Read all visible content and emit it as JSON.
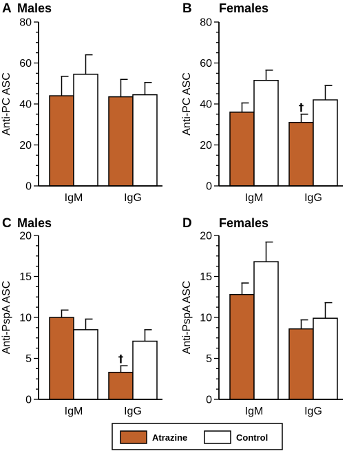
{
  "legend": {
    "items": [
      {
        "label": "Atrazine",
        "color": "#c0622b"
      },
      {
        "label": "Control",
        "color": "#ffffff"
      }
    ]
  },
  "chart_data": [
    {
      "panel": "A",
      "title": "Males",
      "type": "bar",
      "ylabel": "Anti-PC ASC",
      "ylim": [
        0,
        80
      ],
      "yticks": [
        "0",
        "20",
        "40",
        "60",
        "80"
      ],
      "categories": [
        "IgM",
        "IgG"
      ],
      "series": [
        {
          "name": "Atrazine",
          "values": [
            44,
            43.5
          ],
          "errors": [
            9.5,
            8.5
          ]
        },
        {
          "name": "Control",
          "values": [
            54.5,
            44.5
          ],
          "errors": [
            9.5,
            6
          ]
        }
      ],
      "annotations": []
    },
    {
      "panel": "B",
      "title": "Females",
      "type": "bar",
      "ylabel": "Anti-PC ASC",
      "ylim": [
        0,
        80
      ],
      "yticks": [
        "0",
        "20",
        "40",
        "60",
        "80"
      ],
      "categories": [
        "IgM",
        "IgG"
      ],
      "series": [
        {
          "name": "Atrazine",
          "values": [
            36,
            31
          ],
          "errors": [
            4.5,
            4
          ]
        },
        {
          "name": "Control",
          "values": [
            51.5,
            42
          ],
          "errors": [
            5,
            7
          ]
        }
      ],
      "annotations": [
        {
          "text": "†",
          "category": "IgG",
          "series": "Atrazine"
        }
      ]
    },
    {
      "panel": "C",
      "title": "Males",
      "type": "bar",
      "ylabel": "Anti-PspA ASC",
      "ylim": [
        0,
        20
      ],
      "yticks": [
        "0",
        "5",
        "10",
        "15",
        "20"
      ],
      "categories": [
        "IgM",
        "IgG"
      ],
      "series": [
        {
          "name": "Atrazine",
          "values": [
            10,
            3.3
          ],
          "errors": [
            0.9,
            0.8
          ]
        },
        {
          "name": "Control",
          "values": [
            8.5,
            7.1
          ],
          "errors": [
            1.3,
            1.4
          ]
        }
      ],
      "annotations": [
        {
          "text": "†",
          "category": "IgG",
          "series": "Atrazine"
        }
      ]
    },
    {
      "panel": "D",
      "title": "Females",
      "type": "bar",
      "ylabel": "Anti-PspA ASC",
      "ylim": [
        0,
        20
      ],
      "yticks": [
        "0",
        "5",
        "10",
        "15",
        "20"
      ],
      "categories": [
        "IgM",
        "IgG"
      ],
      "series": [
        {
          "name": "Atrazine",
          "values": [
            12.8,
            8.6
          ],
          "errors": [
            1.4,
            1.1
          ]
        },
        {
          "name": "Control",
          "values": [
            16.8,
            9.9
          ],
          "errors": [
            2.4,
            1.9
          ]
        }
      ],
      "annotations": []
    }
  ]
}
